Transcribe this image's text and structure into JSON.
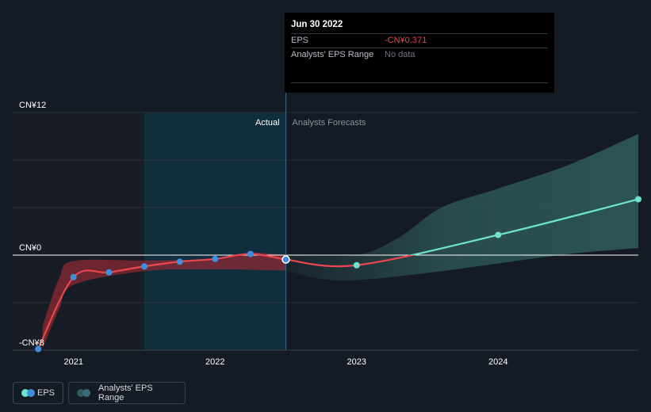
{
  "chart_data": {
    "type": "line",
    "y_ticks": [
      {
        "value": 12,
        "label": "CN¥12"
      },
      {
        "value": 0,
        "label": "CN¥0"
      },
      {
        "value": -8,
        "label": "-CN¥8"
      }
    ],
    "x_ticks": [
      {
        "value": 2021.0,
        "label": "2021"
      },
      {
        "value": 2022.0,
        "label": "2022"
      },
      {
        "value": 2023.0,
        "label": "2023"
      },
      {
        "value": 2024.0,
        "label": "2024"
      }
    ],
    "xlim": [
      2020.57,
      2024.99
    ],
    "ylim": [
      -8,
      12
    ],
    "actual_label": "Actual",
    "forecast_label": "Analysts Forecasts",
    "actual_boundary_x": 2022.5,
    "highlight_start_x": 2021.5,
    "series": [
      {
        "name": "EPS",
        "color": "#e8474f",
        "points": [
          {
            "x": 2020.75,
            "y": -7.9
          },
          {
            "x": 2021.0,
            "y": -1.85
          },
          {
            "x": 2021.25,
            "y": -1.45
          },
          {
            "x": 2021.5,
            "y": -0.95
          },
          {
            "x": 2021.75,
            "y": -0.55
          },
          {
            "x": 2022.0,
            "y": -0.32
          },
          {
            "x": 2022.25,
            "y": 0.1
          },
          {
            "x": 2022.5,
            "y": -0.371
          }
        ]
      },
      {
        "name": "EPS forecast",
        "color_down": "#e8474f",
        "color_up": "#6fe1cf",
        "points": [
          {
            "x": 2022.5,
            "y": -0.371
          },
          {
            "x": 2023.0,
            "y": -0.85
          },
          {
            "x": 2024.0,
            "y": 1.7
          },
          {
            "x": 2024.99,
            "y": 4.7
          }
        ]
      }
    ],
    "range_actual": {
      "upper": [
        {
          "x": 2020.78,
          "y": -6.0
        },
        {
          "x": 2020.9,
          "y": -1.9
        },
        {
          "x": 2021.0,
          "y": -0.5
        },
        {
          "x": 2021.5,
          "y": -0.45
        },
        {
          "x": 2022.0,
          "y": -0.3
        },
        {
          "x": 2022.25,
          "y": 0.2
        },
        {
          "x": 2022.5,
          "y": 0.0
        }
      ],
      "lower": [
        {
          "x": 2022.5,
          "y": -1.3
        },
        {
          "x": 2022.0,
          "y": -1.2
        },
        {
          "x": 2021.5,
          "y": -1.35
        },
        {
          "x": 2021.0,
          "y": -2.5
        },
        {
          "x": 2020.9,
          "y": -4.5
        },
        {
          "x": 2020.78,
          "y": -7.9
        }
      ]
    },
    "range_forecast_upper": [
      {
        "x": 2022.5,
        "y": 0.0
      },
      {
        "x": 2023.0,
        "y": 0.0
      },
      {
        "x": 2023.3,
        "y": 1.5
      },
      {
        "x": 2023.6,
        "y": 4.0
      },
      {
        "x": 2024.0,
        "y": 5.6
      },
      {
        "x": 2024.5,
        "y": 7.6
      },
      {
        "x": 2024.99,
        "y": 10.2
      }
    ],
    "range_forecast_lower": [
      {
        "x": 2024.99,
        "y": 0.6
      },
      {
        "x": 2024.5,
        "y": 0.1
      },
      {
        "x": 2024.0,
        "y": -0.7
      },
      {
        "x": 2023.5,
        "y": -1.5
      },
      {
        "x": 2023.0,
        "y": -2.1
      },
      {
        "x": 2022.75,
        "y": -2.0
      },
      {
        "x": 2022.5,
        "y": -1.3
      }
    ],
    "forecast_markers": [
      {
        "x": 2023.0,
        "y": -0.85
      },
      {
        "x": 2024.0,
        "y": 1.7
      },
      {
        "x": 2024.99,
        "y": 4.7
      }
    ],
    "colors": {
      "eps_actual": "#e8474f",
      "eps_forecast": "#6fe1cf",
      "marker": "#3d8fd9",
      "range_actual": "#8a2a33",
      "range_forecast": "#2f5a5a",
      "highlight": "#0f3140",
      "grid": "#2a313b"
    }
  },
  "tooltip": {
    "date": "Jun 30 2022",
    "rows": [
      {
        "label": "EPS",
        "value": "-CN¥0.371"
      },
      {
        "label": "Analysts' EPS Range",
        "value": "No data"
      }
    ]
  },
  "legend": {
    "eps_label": "EPS",
    "range_label": "Analysts' EPS Range"
  }
}
